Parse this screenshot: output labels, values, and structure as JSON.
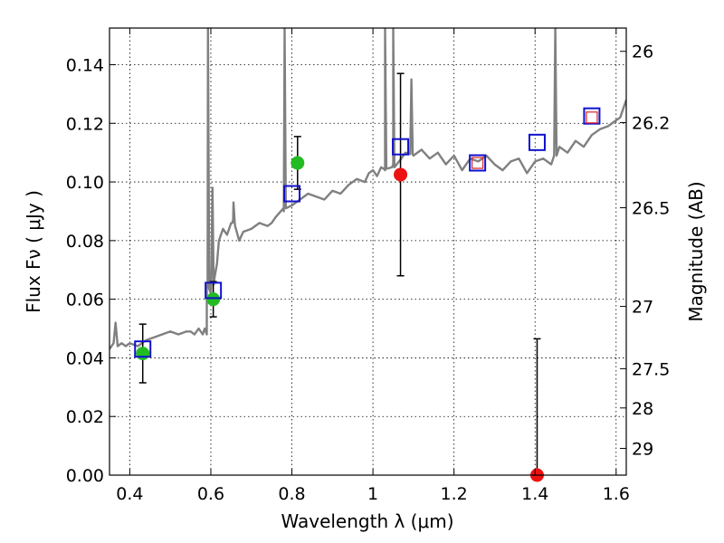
{
  "chart_data": {
    "type": "scatter",
    "xlabel": "Wavelength  λ (μm)",
    "ylabel": "Flux  Fν  ( μJy )",
    "ylabel_right": "Magnitude (AB)",
    "xlim": [
      0.35,
      1.625
    ],
    "ylim": [
      0.0,
      0.1525
    ],
    "grid": true,
    "x_ticks": [
      0.4,
      0.6,
      0.8,
      1.0,
      1.2,
      1.4,
      1.6
    ],
    "x_tick_labels": [
      "0.4",
      "0.6",
      "0.8",
      "1",
      "1.2",
      "1.4",
      "1.6"
    ],
    "y_ticks": [
      0.0,
      0.02,
      0.04,
      0.06,
      0.08,
      0.1,
      0.12,
      0.14
    ],
    "y_tick_labels": [
      "0.00",
      "0.02",
      "0.04",
      "0.06",
      "0.08",
      "0.10",
      "0.12",
      "0.14"
    ],
    "right_ticks": [
      {
        "label": "26",
        "value": 26.0
      },
      {
        "label": "26.2",
        "value": 26.2
      },
      {
        "label": "26.5",
        "value": 26.5
      },
      {
        "label": "27",
        "value": 27.0
      },
      {
        "label": "27.5",
        "value": 27.5
      },
      {
        "label": "28",
        "value": 28.0
      },
      {
        "label": "29",
        "value": 29.0
      }
    ],
    "colors": {
      "model": "#808080",
      "detected_hst": "#22bb22",
      "detected_other": "#ee1111",
      "model_box": "#1111cc",
      "model_box_inner": "#dd2222",
      "errorbar": "#000000"
    },
    "model_spectrum": {
      "x": [
        0.35,
        0.36,
        0.365,
        0.37,
        0.38,
        0.39,
        0.4,
        0.42,
        0.44,
        0.46,
        0.48,
        0.5,
        0.52,
        0.54,
        0.55,
        0.56,
        0.57,
        0.58,
        0.585,
        0.59,
        0.592,
        0.6,
        0.61,
        0.615,
        0.62,
        0.63,
        0.64,
        0.65,
        0.655,
        0.66,
        0.67,
        0.68,
        0.7,
        0.72,
        0.74,
        0.75,
        0.76,
        0.78,
        0.8,
        0.82,
        0.84,
        0.86,
        0.88,
        0.9,
        0.92,
        0.94,
        0.96,
        0.98,
        0.99,
        1.0,
        1.01,
        1.02,
        1.03,
        1.05,
        1.07,
        1.08,
        1.1,
        1.12,
        1.14,
        1.16,
        1.18,
        1.2,
        1.22,
        1.24,
        1.26,
        1.28,
        1.3,
        1.32,
        1.34,
        1.36,
        1.38,
        1.4,
        1.42,
        1.44,
        1.46,
        1.48,
        1.5,
        1.52,
        1.54,
        1.56,
        1.58,
        1.6,
        1.61,
        1.625
      ],
      "y": [
        0.043,
        0.045,
        0.052,
        0.044,
        0.045,
        0.044,
        0.045,
        0.044,
        0.046,
        0.047,
        0.048,
        0.049,
        0.048,
        0.049,
        0.049,
        0.048,
        0.05,
        0.048,
        0.05,
        0.048,
        0.065,
        0.062,
        0.068,
        0.072,
        0.08,
        0.084,
        0.082,
        0.086,
        0.087,
        0.085,
        0.08,
        0.083,
        0.084,
        0.086,
        0.085,
        0.086,
        0.088,
        0.09,
        0.092,
        0.094,
        0.096,
        0.095,
        0.094,
        0.097,
        0.096,
        0.099,
        0.101,
        0.1,
        0.103,
        0.104,
        0.102,
        0.105,
        0.104,
        0.106,
        0.108,
        0.11,
        0.109,
        0.111,
        0.108,
        0.11,
        0.106,
        0.109,
        0.104,
        0.108,
        0.107,
        0.109,
        0.106,
        0.104,
        0.107,
        0.108,
        0.103,
        0.107,
        0.108,
        0.106,
        0.112,
        0.11,
        0.114,
        0.112,
        0.116,
        0.118,
        0.119,
        0.121,
        0.122,
        0.128
      ]
    },
    "emission_spikes": [
      {
        "x": 0.593,
        "peak": 0.1525
      },
      {
        "x": 0.604,
        "peak": 0.098
      },
      {
        "x": 0.656,
        "peak": 0.093
      },
      {
        "x": 0.782,
        "peak": 0.1525
      },
      {
        "x": 1.03,
        "peak": 0.1525
      },
      {
        "x": 1.05,
        "peak": 0.1525
      },
      {
        "x": 1.095,
        "peak": 0.135
      },
      {
        "x": 1.45,
        "peak": 0.1525
      }
    ],
    "series": [
      {
        "marker": "circle",
        "color_key": "detected_hst",
        "points": [
          {
            "x": 0.432,
            "y": 0.0415,
            "yerr_low": 0.0315,
            "yerr_high": 0.0515
          },
          {
            "x": 0.606,
            "y": 0.06,
            "yerr_low": 0.054,
            "yerr_high": 0.066
          },
          {
            "x": 0.814,
            "y": 0.1065,
            "yerr_low": 0.0975,
            "yerr_high": 0.1155
          }
        ]
      },
      {
        "marker": "circle",
        "color_key": "detected_other",
        "points": [
          {
            "x": 1.068,
            "y": 0.1025,
            "yerr_low": 0.068,
            "yerr_high": 0.137
          },
          {
            "x": 1.405,
            "y": 0.0,
            "yerr_low": 0.0,
            "yerr_high": 0.0465
          }
        ]
      },
      {
        "marker": "square",
        "color_key": "model_box",
        "points": [
          {
            "x": 0.432,
            "y": 0.043
          },
          {
            "x": 0.606,
            "y": 0.063
          },
          {
            "x": 0.8,
            "y": 0.096
          },
          {
            "x": 1.068,
            "y": 0.112
          },
          {
            "x": 1.258,
            "y": 0.1065
          },
          {
            "x": 1.405,
            "y": 0.1135
          },
          {
            "x": 1.54,
            "y": 0.1225
          }
        ]
      },
      {
        "marker": "square-small",
        "color_key": "model_box_inner",
        "points": [
          {
            "x": 1.258,
            "y": 0.1065
          },
          {
            "x": 1.54,
            "y": 0.122
          }
        ]
      }
    ]
  }
}
